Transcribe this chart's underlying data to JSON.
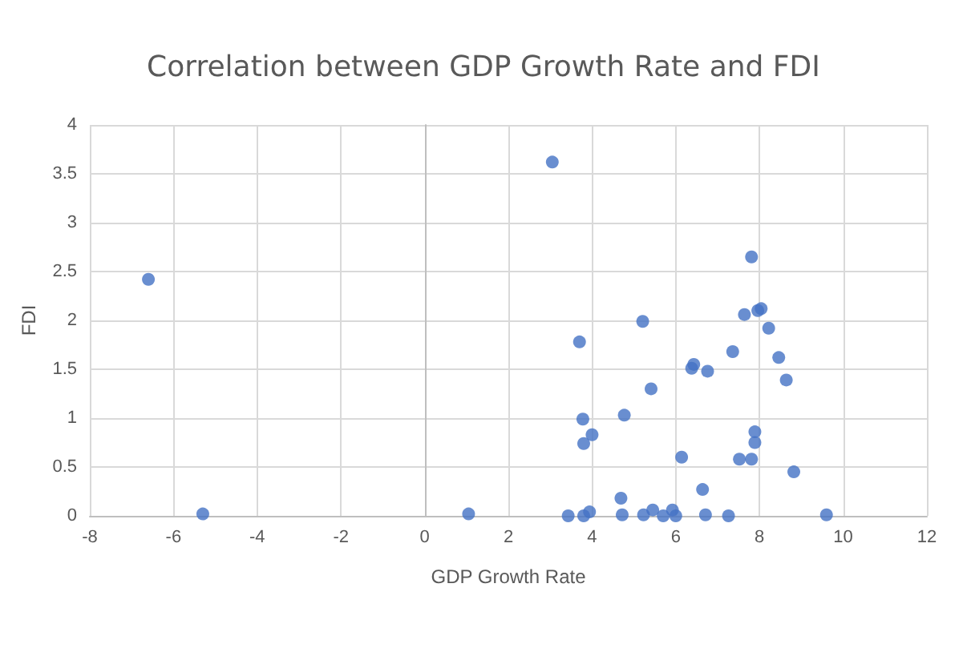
{
  "chart_data": {
    "type": "scatter",
    "title": "Correlation between GDP Growth Rate and FDI",
    "xlabel": "GDP Growth Rate",
    "ylabel": "FDI",
    "x": [
      -6.6,
      -5.3,
      1.05,
      3.05,
      7.81,
      7.64,
      7.96,
      8.04,
      8.22,
      5.21,
      3.7,
      7.36,
      8.46,
      8.64,
      6.38,
      6.43,
      6.76,
      5.41,
      4.77,
      3.78,
      4.0,
      3.8,
      6.14,
      7.52,
      7.81,
      7.89,
      7.89,
      8.82,
      6.64,
      4.69,
      3.43,
      3.8,
      3.94,
      4.72,
      5.23,
      5.45,
      5.7,
      5.92,
      6.0,
      6.71,
      7.26,
      9.6
    ],
    "values": [
      2.42,
      0.02,
      0.02,
      3.62,
      2.65,
      2.06,
      2.1,
      2.12,
      1.92,
      1.99,
      1.78,
      1.68,
      1.62,
      1.39,
      1.51,
      1.55,
      1.48,
      1.3,
      1.03,
      0.99,
      0.83,
      0.74,
      0.6,
      0.58,
      0.58,
      0.86,
      0.75,
      0.45,
      0.27,
      0.18,
      0.0,
      0.0,
      0.04,
      0.01,
      0.01,
      0.06,
      0.0,
      0.06,
      0.0,
      0.01,
      0.0,
      0.01
    ],
    "color": "#4472c4",
    "marker": "circle",
    "xlim": [
      -8,
      12
    ],
    "xticks": [
      -8,
      -6,
      -4,
      -2,
      0,
      2,
      4,
      6,
      8,
      10,
      12
    ],
    "ylim": [
      0,
      4
    ],
    "yticks": [
      0,
      0.5,
      1,
      1.5,
      2,
      2.5,
      3,
      3.5,
      4
    ],
    "grid": true
  }
}
